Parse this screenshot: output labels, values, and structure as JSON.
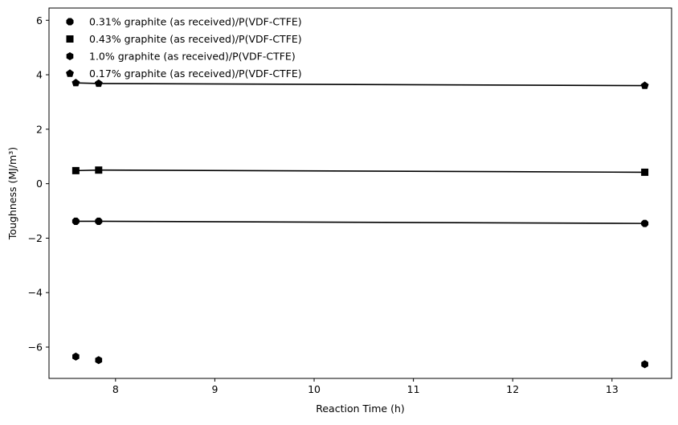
{
  "chart_data": {
    "type": "line",
    "title": "",
    "xlabel": "Reaction Time (h)",
    "ylabel": "Toughness (MJ/m³)",
    "xlim": [
      7.33,
      13.6
    ],
    "ylim": [
      -7.15,
      6.45
    ],
    "xticks": [
      8,
      9,
      10,
      11,
      12,
      13
    ],
    "yticks": [
      -6,
      -4,
      -2,
      0,
      2,
      4,
      6
    ],
    "xtick_labels": [
      "8",
      "9",
      "10",
      "11",
      "12",
      "13"
    ],
    "ytick_labels": [
      "−6",
      "−4",
      "−2",
      "0",
      "2",
      "4",
      "6"
    ],
    "grid": false,
    "legend_position": "top-left",
    "series": [
      {
        "name": "0.31% graphite (as received)/P(VDF-CTFE)",
        "marker": "octagon",
        "x": [
          7.6,
          7.83,
          13.33
        ],
        "y": [
          -1.38,
          -1.38,
          -1.46
        ],
        "fit_line": true
      },
      {
        "name": "0.43% graphite (as received)/P(VDF-CTFE)",
        "marker": "square",
        "x": [
          7.6,
          7.83,
          13.33
        ],
        "y": [
          0.48,
          0.5,
          0.42
        ],
        "fit_line": true
      },
      {
        "name": "1.0% graphite (as received)/P(VDF-CTFE)",
        "marker": "hexagon",
        "x": [
          7.6,
          7.83,
          13.33
        ],
        "y": [
          -6.35,
          -6.48,
          -6.63
        ],
        "fit_line": false
      },
      {
        "name": "0.17% graphite (as received)/P(VDF-CTFE)",
        "marker": "pentagon",
        "x": [
          7.6,
          7.83,
          13.33
        ],
        "y": [
          3.7,
          3.68,
          3.6
        ],
        "fit_line": true
      }
    ]
  }
}
